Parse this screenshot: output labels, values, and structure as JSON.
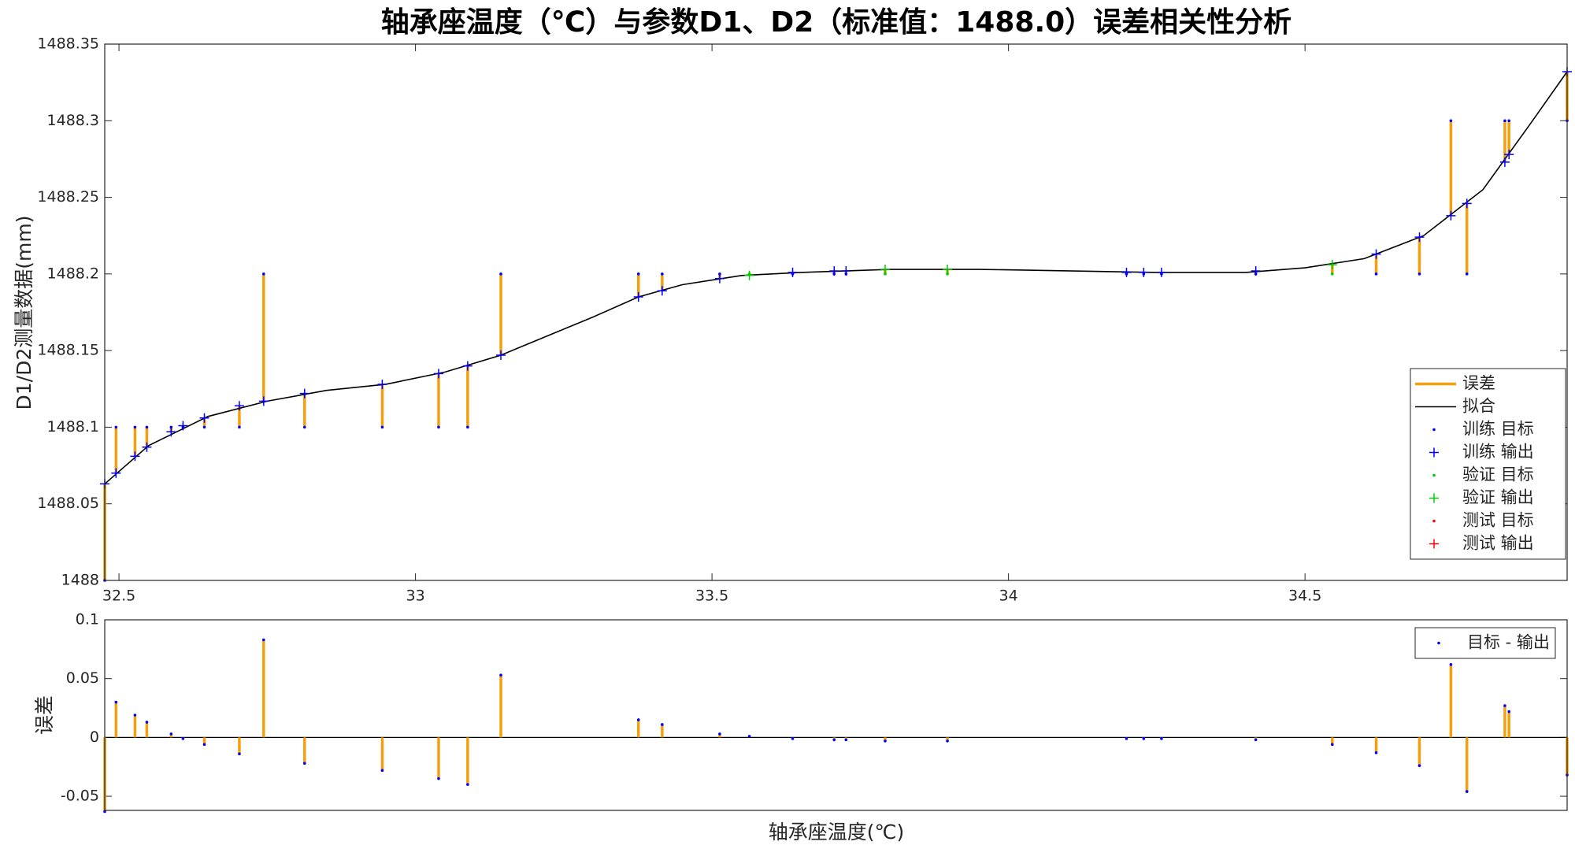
{
  "chart_data": [
    {
      "type": "fit",
      "title": "轴承座温度（℃）与参数D1、D2（标准值：1488.0）误差相关性分析",
      "ylabel": "D1/D2测量数据(mm)",
      "xlim": [
        32.476,
        34.942
      ],
      "xticks": [
        32.5,
        33,
        33.5,
        34,
        34.5
      ],
      "ylim": [
        1488,
        1488.35
      ],
      "yticks": [
        1488,
        1488.05,
        1488.1,
        1488.15,
        1488.2,
        1488.25,
        1488.3,
        1488.35
      ],
      "legend": "southeast",
      "error_name": "误差",
      "error_color": "#f59f0f",
      "fit": {
        "name": "拟合",
        "color": "#000000",
        "x": [
          32.476,
          32.55,
          32.65,
          32.75,
          32.85,
          32.95,
          33.05,
          33.144,
          33.2,
          33.3,
          33.376,
          33.45,
          33.55,
          33.65,
          33.8,
          33.95,
          34.1,
          34.25,
          34.4,
          34.5,
          34.6,
          34.7,
          34.8,
          34.88,
          34.942
        ],
        "values": [
          1488.063,
          1488.088,
          1488.107,
          1488.117,
          1488.124,
          1488.128,
          1488.136,
          1488.147,
          1488.156,
          1488.172,
          1488.185,
          1488.193,
          1488.199,
          1488.201,
          1488.203,
          1488.203,
          1488.202,
          1488.201,
          1488.201,
          1488.204,
          1488.21,
          1488.225,
          1488.255,
          1488.298,
          1488.332
        ]
      },
      "series": [
        {
          "name": "训练 目标",
          "color": "#0000ff",
          "marker": "dot",
          "x": [
            32.476,
            32.495,
            32.527,
            32.547,
            32.588,
            32.608,
            32.644,
            32.703,
            32.744,
            32.813,
            32.944,
            33.039,
            33.088,
            33.144,
            33.376,
            33.416,
            33.513,
            33.636,
            33.706,
            33.726,
            34.199,
            34.228,
            34.258,
            34.417,
            34.62,
            34.693,
            34.746,
            34.773,
            34.837,
            34.844,
            34.942
          ],
          "values": [
            1488,
            1488.1,
            1488.1,
            1488.1,
            1488.1,
            1488.1,
            1488.1,
            1488.1,
            1488.2,
            1488.1,
            1488.1,
            1488.1,
            1488.1,
            1488.2,
            1488.2,
            1488.2,
            1488.2,
            1488.2,
            1488.2,
            1488.2,
            1488.2,
            1488.2,
            1488.2,
            1488.2,
            1488.2,
            1488.2,
            1488.3,
            1488.2,
            1488.3,
            1488.3,
            1488.3
          ]
        },
        {
          "name": "训练 输出",
          "color": "#0000ff",
          "marker": "plus",
          "x": [
            32.476,
            32.495,
            32.527,
            32.547,
            32.588,
            32.608,
            32.644,
            32.703,
            32.744,
            32.813,
            32.944,
            33.039,
            33.088,
            33.144,
            33.376,
            33.416,
            33.513,
            33.636,
            33.706,
            33.726,
            34.199,
            34.228,
            34.258,
            34.417,
            34.62,
            34.693,
            34.746,
            34.773,
            34.837,
            34.844,
            34.942
          ],
          "values": [
            1488.063,
            1488.07,
            1488.081,
            1488.087,
            1488.097,
            1488.101,
            1488.106,
            1488.114,
            1488.117,
            1488.122,
            1488.128,
            1488.135,
            1488.14,
            1488.147,
            1488.185,
            1488.189,
            1488.197,
            1488.201,
            1488.202,
            1488.202,
            1488.201,
            1488.201,
            1488.201,
            1488.202,
            1488.213,
            1488.224,
            1488.238,
            1488.246,
            1488.273,
            1488.278,
            1488.332
          ]
        },
        {
          "name": "验证 目标",
          "color": "#00cc00",
          "marker": "dot",
          "x": [
            33.563,
            33.792,
            33.897,
            34.546
          ],
          "values": [
            1488.2,
            1488.2,
            1488.2,
            1488.2
          ]
        },
        {
          "name": "验证 输出",
          "color": "#00cc00",
          "marker": "plus",
          "x": [
            33.563,
            33.792,
            33.897,
            34.546
          ],
          "values": [
            1488.199,
            1488.203,
            1488.203,
            1488.206
          ]
        },
        {
          "name": "测试 目标",
          "color": "#ff0000",
          "marker": "dot",
          "x": [],
          "values": []
        },
        {
          "name": "测试 输出",
          "color": "#ff0000",
          "marker": "plus",
          "x": [],
          "values": []
        }
      ]
    },
    {
      "type": "stem",
      "xlabel": "轴承座温度(℃)",
      "ylabel": "误差",
      "xlim": [
        32.476,
        34.942
      ],
      "ylim": [
        -0.062,
        0.1
      ],
      "yticks": [
        -0.05,
        0,
        0.05,
        0.1
      ],
      "legend": "northeast",
      "stem_color": "#f59f0f",
      "series": [
        {
          "name": "目标 - 输出",
          "color": "#0000ff",
          "x": [
            32.476,
            32.495,
            32.527,
            32.547,
            32.588,
            32.608,
            32.644,
            32.703,
            32.744,
            32.813,
            32.944,
            33.039,
            33.088,
            33.144,
            33.376,
            33.416,
            33.513,
            33.563,
            33.636,
            33.706,
            33.726,
            33.792,
            33.897,
            34.199,
            34.228,
            34.258,
            34.417,
            34.546,
            34.62,
            34.693,
            34.746,
            34.773,
            34.837,
            34.844,
            34.942
          ],
          "values": [
            -0.063,
            0.03,
            0.019,
            0.013,
            0.003,
            -0.001,
            -0.006,
            -0.014,
            0.083,
            -0.022,
            -0.028,
            -0.035,
            -0.04,
            0.053,
            0.015,
            0.011,
            0.003,
            0.001,
            -0.001,
            -0.002,
            -0.002,
            -0.003,
            -0.003,
            -0.001,
            -0.001,
            -0.001,
            -0.002,
            -0.006,
            -0.013,
            -0.024,
            0.062,
            -0.046,
            0.027,
            0.022,
            -0.032
          ]
        }
      ]
    }
  ]
}
